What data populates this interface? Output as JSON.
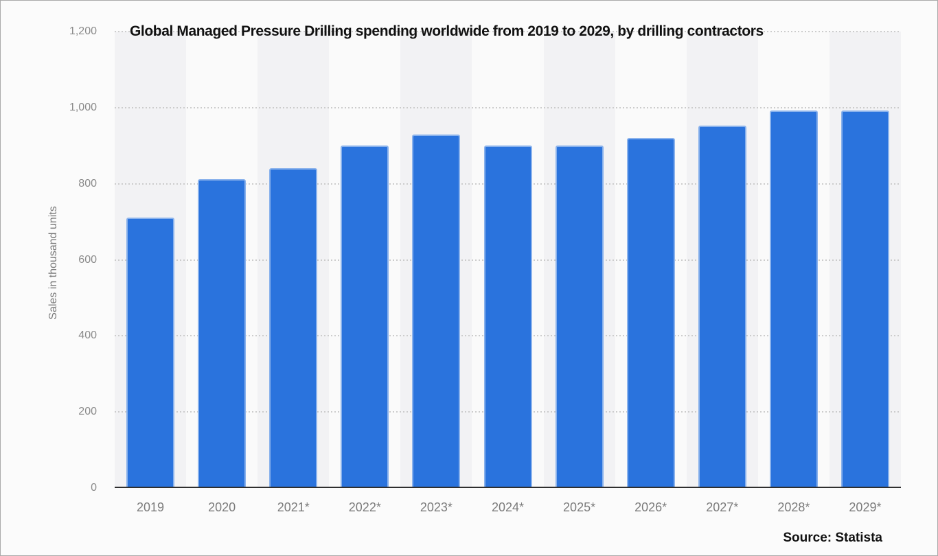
{
  "frame": {
    "background": "#fbfbfb",
    "border_color": "#a9a9a9"
  },
  "chart_data": {
    "type": "bar",
    "title": "Global Managed Pressure Drilling spending worldwide from 2019 to 2029, by drilling contractors",
    "xlabel": "",
    "ylabel": "Sales in thousand units",
    "categories": [
      "2019",
      "2020",
      "2021*",
      "2022*",
      "2023*",
      "2024*",
      "2025*",
      "2026*",
      "2027*",
      "2028*",
      "2029*"
    ],
    "values": [
      707,
      808,
      838,
      897,
      926,
      897,
      897,
      917,
      949,
      989,
      989
    ],
    "ylim": [
      0,
      1200
    ],
    "yticks": [
      0,
      200,
      400,
      600,
      800,
      1000,
      1200
    ],
    "ytick_labels": [
      "0",
      "200",
      "400",
      "600",
      "800",
      "1,000",
      "1,200"
    ],
    "grid": "horizontal-dotted",
    "legend": "none",
    "bar_color": "#2a73dd",
    "band_colors": [
      "#f2f2f4",
      "#fafafa"
    ],
    "gridline_color": "#cccccc",
    "axis_line_color": "#2f2f2f",
    "tick_label_color": "#8a8a8a"
  },
  "source": {
    "label": "Source: Statista"
  }
}
